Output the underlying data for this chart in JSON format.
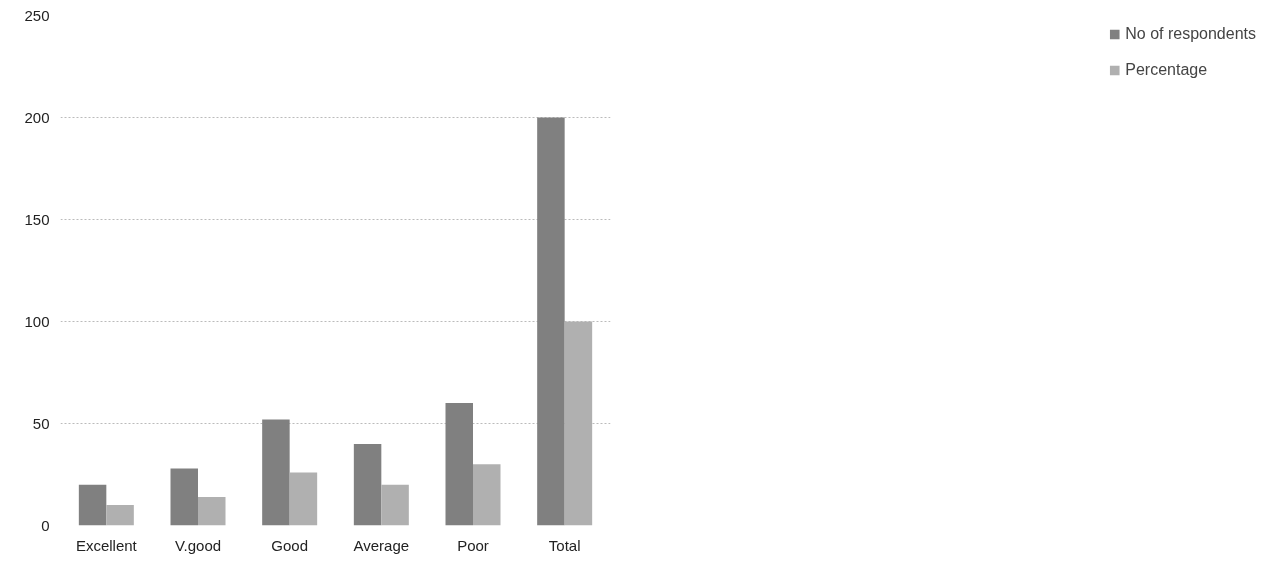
{
  "chart_data": {
    "type": "bar",
    "categories": [
      "Excellent",
      "V.good",
      "Good",
      "Average",
      "Poor",
      "Total"
    ],
    "series": [
      {
        "name": "No of respondents",
        "color": "#808080",
        "values": [
          20,
          28,
          52,
          40,
          60,
          200
        ]
      },
      {
        "name": "Percentage",
        "color": "#b0b0b0",
        "values": [
          10,
          14,
          26,
          20,
          30,
          100
        ]
      }
    ],
    "ylim": [
      0,
      250
    ],
    "yticks": [
      0,
      50,
      100,
      150,
      200,
      250
    ],
    "grid": "y",
    "legend": "right"
  }
}
